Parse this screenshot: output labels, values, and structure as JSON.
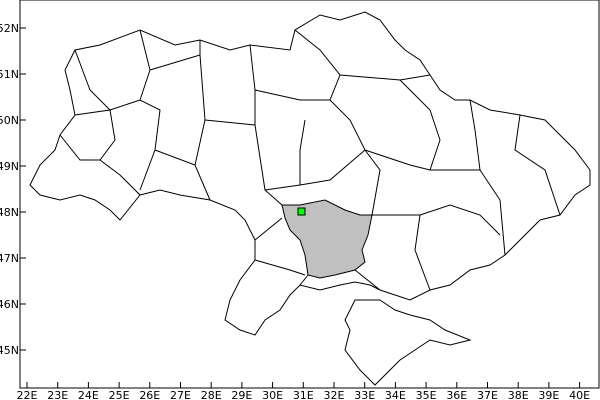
{
  "map": {
    "x_ticks": [
      "22E",
      "23E",
      "24E",
      "25E",
      "26E",
      "27E",
      "28E",
      "29E",
      "30E",
      "31E",
      "32E",
      "33E",
      "34E",
      "35E",
      "36E",
      "37E",
      "38E",
      "39E",
      "40E"
    ],
    "y_ticks": [
      "45N",
      "46N",
      "47N",
      "48N",
      "49N",
      "50N",
      "51N",
      "52N"
    ],
    "lon_range": [
      21.8,
      40.6
    ],
    "lat_range": [
      44.2,
      52.6
    ],
    "highlighted_region_color": "#c0c0c0",
    "marker": {
      "lon": 31.0,
      "lat": 48.0,
      "color": "#00ff00",
      "shape": "square"
    },
    "boundary_color": "#000000",
    "background_color": "#ffffff"
  }
}
